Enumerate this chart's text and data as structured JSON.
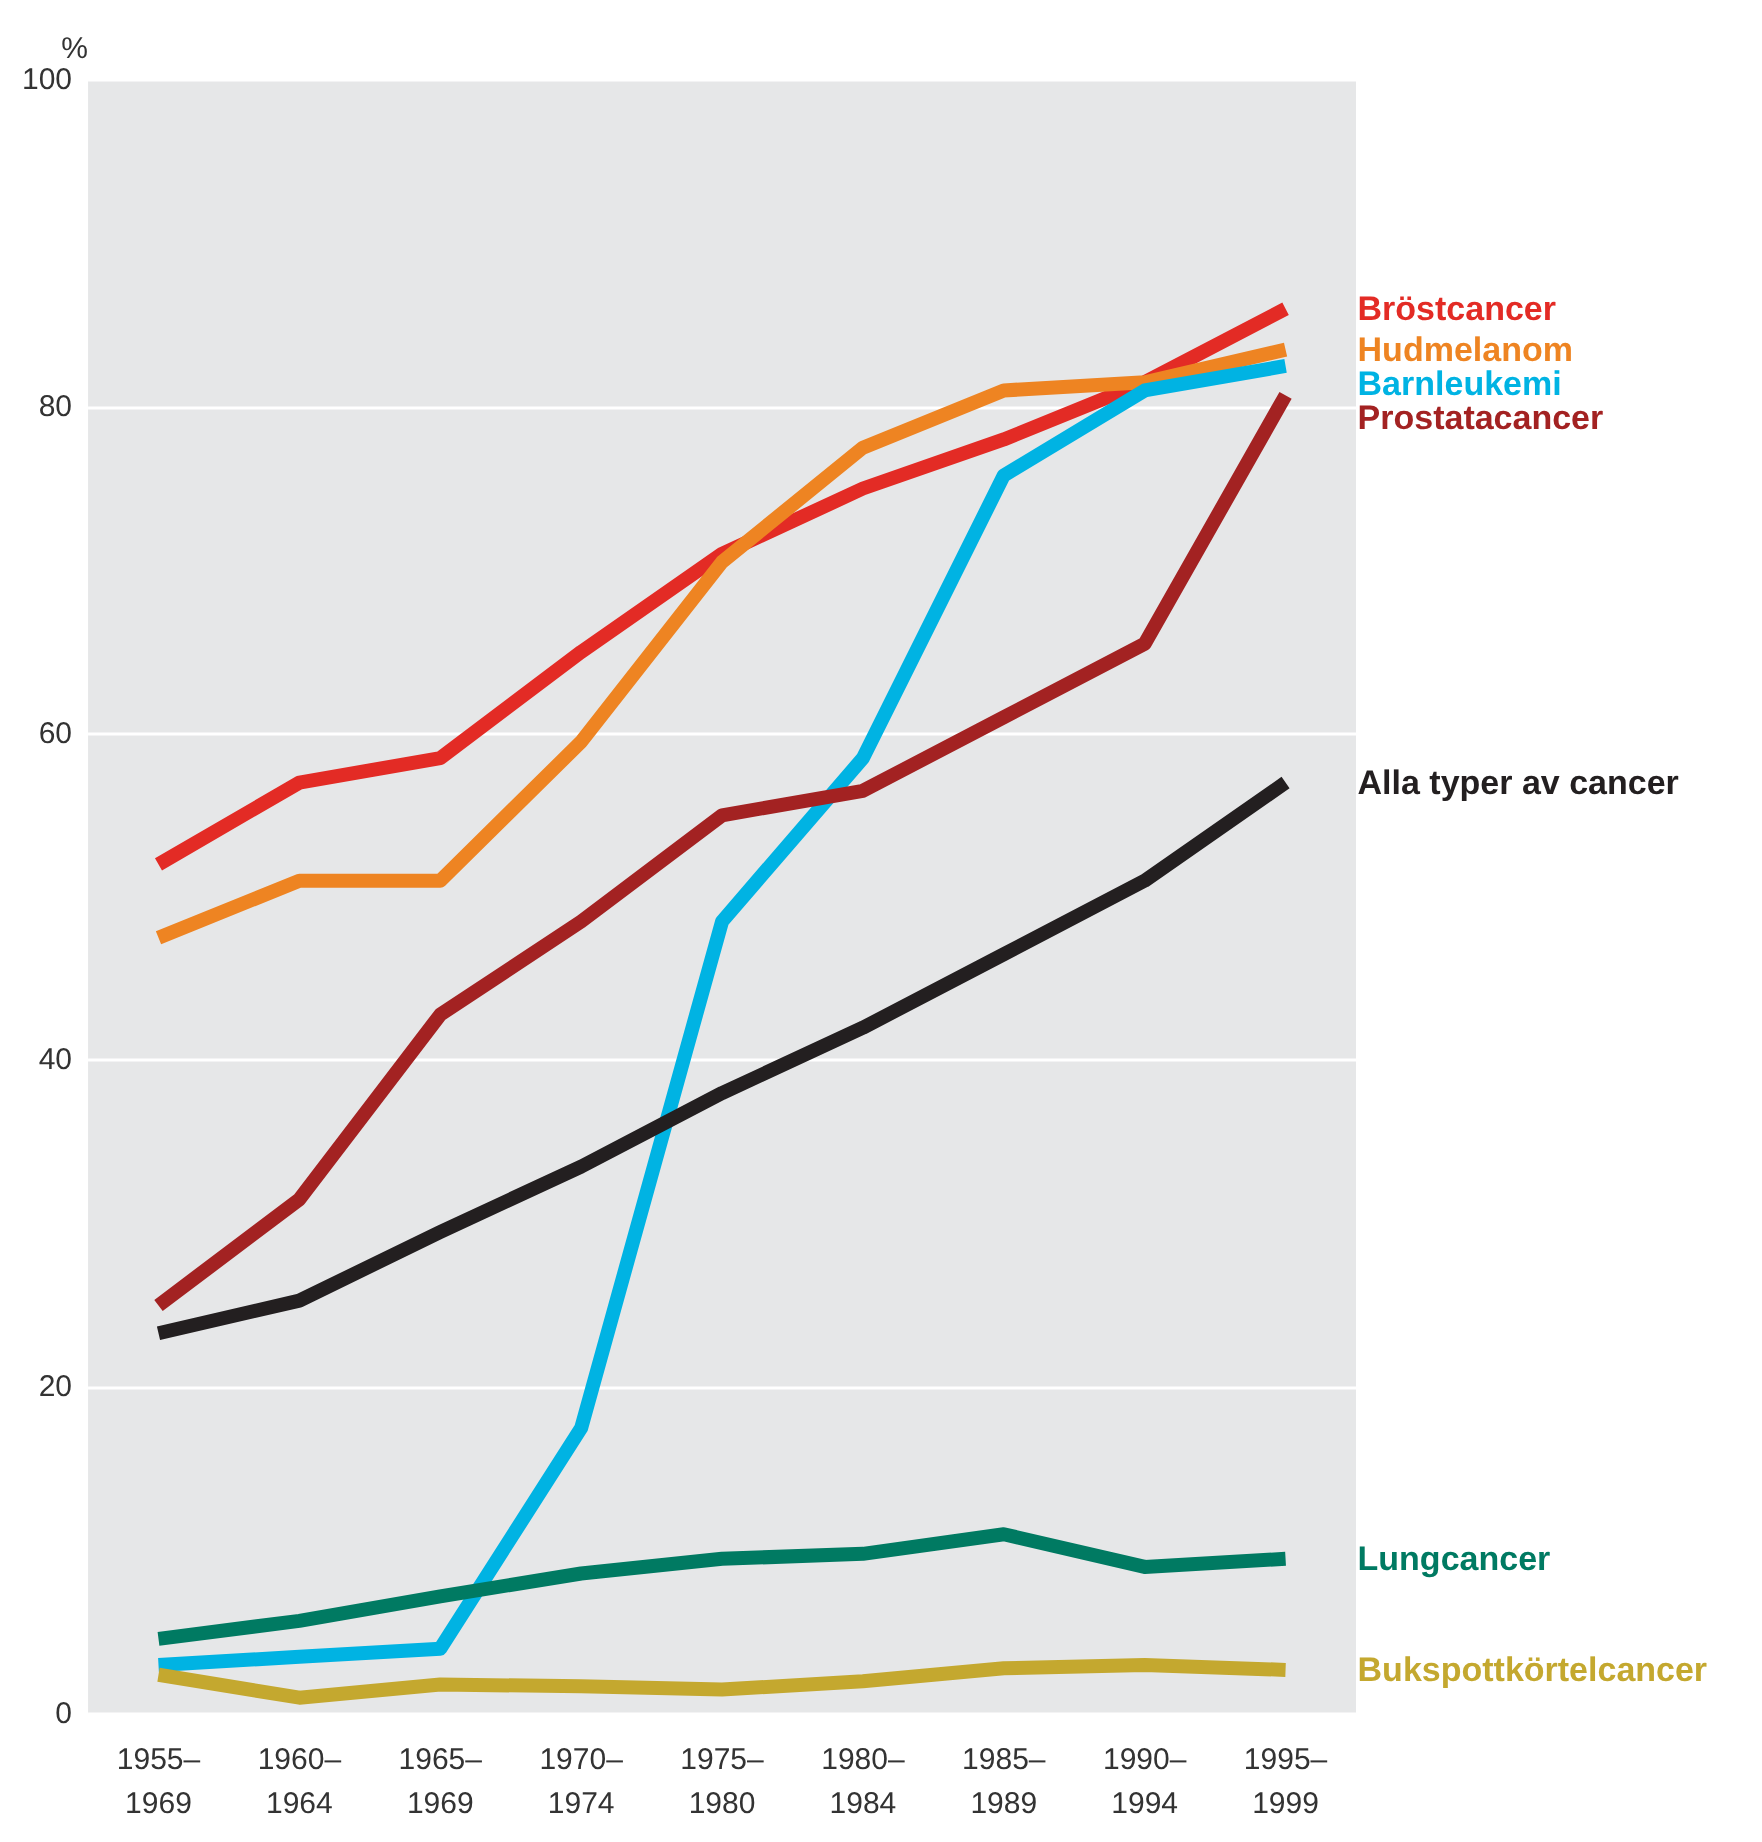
{
  "chart_data": {
    "type": "line",
    "ylabel": "%",
    "categories": [
      "1955–1969",
      "1960–1964",
      "1965–1969",
      "1970–1974",
      "1975–1980",
      "1980–1984",
      "1985–1989",
      "1990–1994",
      "1995–1999"
    ],
    "ylim": [
      0,
      100
    ],
    "yticks": [
      0,
      20,
      40,
      60,
      80,
      100
    ],
    "grid": "y",
    "legend": false,
    "marker": "none",
    "line_style": "solid",
    "series": [
      {
        "name": "Bröstcancer",
        "color": "#e32b25",
        "values": [
          52,
          57,
          58.5,
          65,
          71,
          75,
          78,
          81.5,
          86
        ]
      },
      {
        "name": "Hudmelanom",
        "color": "#ee8422",
        "values": [
          47.5,
          51,
          51,
          59.5,
          70.5,
          77.5,
          81,
          81.5,
          83.5
        ]
      },
      {
        "name": "Barnleukemi",
        "color": "#00b3e3",
        "values": [
          3,
          3.5,
          4,
          17.5,
          48.5,
          58.5,
          75.8,
          81,
          82.5
        ]
      },
      {
        "name": "Prostatacancer",
        "color": "#a32222",
        "values": [
          25,
          31.5,
          42.8,
          48.5,
          55,
          56.5,
          61,
          65.5,
          80.7
        ]
      },
      {
        "name": "Alla typer av cancer",
        "color": "#231f20",
        "values": [
          23.3,
          25.3,
          29.5,
          33.5,
          38,
          42,
          46.5,
          51,
          57
        ]
      },
      {
        "name": "Lungcancer",
        "color": "#007a62",
        "values": [
          4.6,
          5.7,
          7.2,
          8.6,
          9.5,
          9.8,
          11,
          9,
          9.5
        ]
      },
      {
        "name": "Bukspottkörtelcancer",
        "color": "#c4a82f",
        "values": [
          2.4,
          1,
          1.8,
          1.7,
          1.5,
          2,
          2.8,
          3,
          2.7
        ]
      }
    ]
  }
}
